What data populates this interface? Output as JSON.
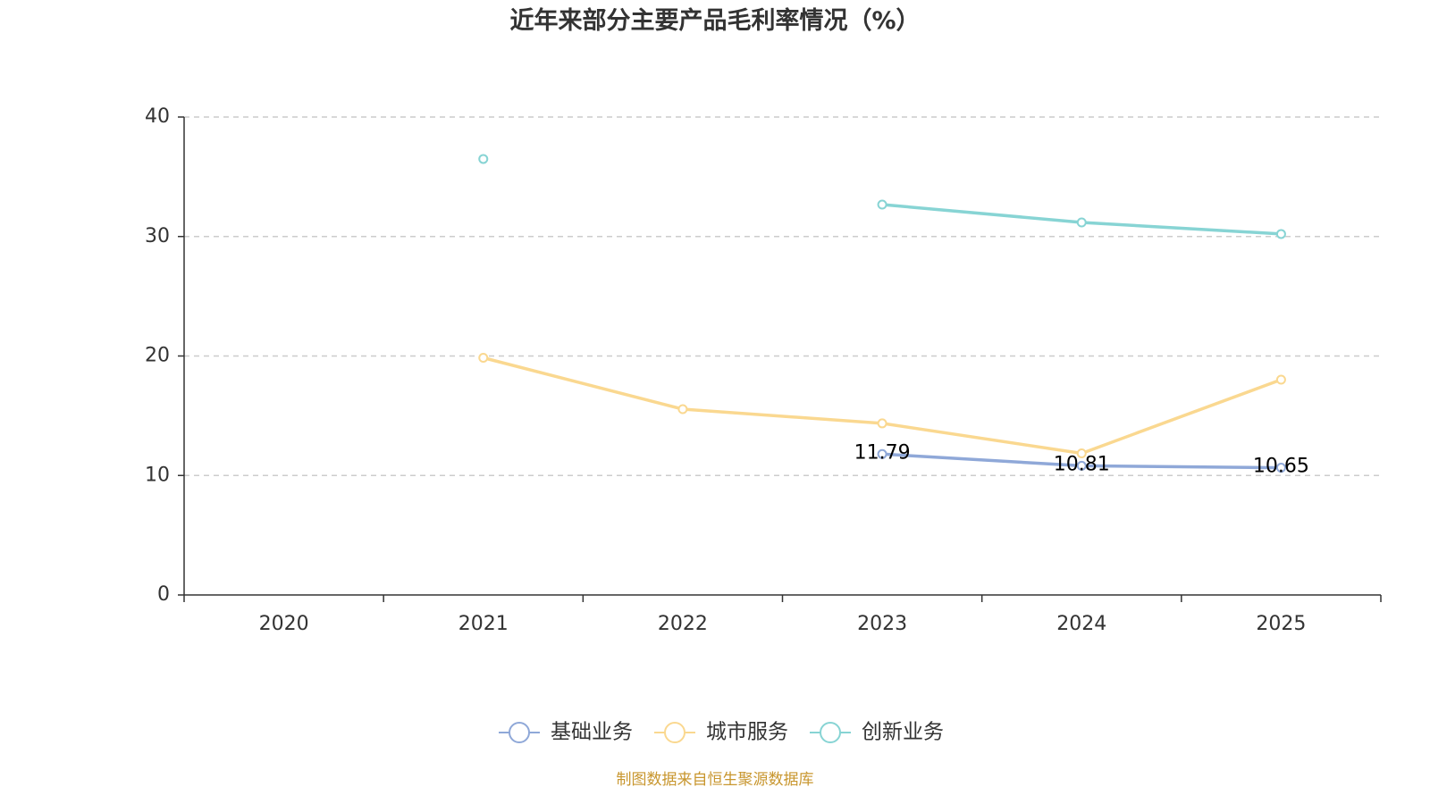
{
  "chart_data": {
    "type": "line",
    "title": "近年来部分主要产品毛利率情况（%）",
    "xlabel": "",
    "ylabel": "",
    "categories": [
      "2020",
      "2021",
      "2022",
      "2023",
      "2024",
      "2025"
    ],
    "ylim": [
      0,
      40
    ],
    "yticks": [
      "0",
      "10",
      "20",
      "30",
      "40"
    ],
    "grid": true,
    "legend_position": "bottom",
    "series": [
      {
        "name": "基础业务",
        "color": "#8fa8d8",
        "show_labels": true,
        "values": [
          null,
          null,
          null,
          11.79,
          10.81,
          10.65
        ]
      },
      {
        "name": "城市服务",
        "color": "#fad890",
        "show_labels": false,
        "values": [
          null,
          19.85,
          15.55,
          14.36,
          11.85,
          18.02
        ]
      },
      {
        "name": "创新业务",
        "color": "#87d4d4",
        "show_labels": false,
        "values": [
          null,
          36.49,
          null,
          32.67,
          31.18,
          30.21
        ]
      }
    ]
  },
  "source": "制图数据来自恒生聚源数据库",
  "source_color": "#c8962e"
}
